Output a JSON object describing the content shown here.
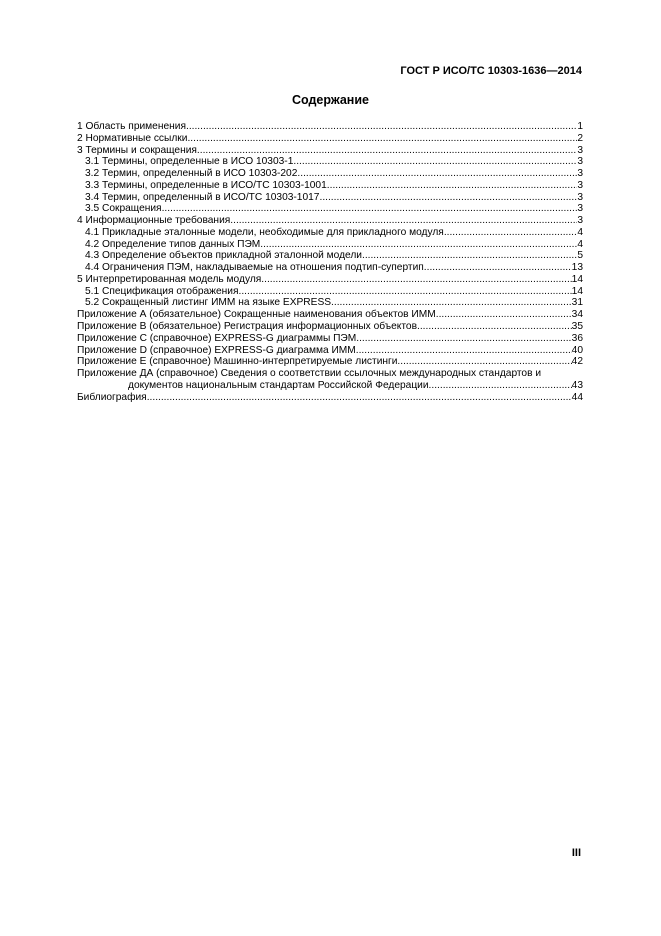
{
  "header": {
    "doc_id": "ГОСТ Р ИСО/ТС 10303-1636—2014"
  },
  "title": "Содержание",
  "toc": [
    {
      "text": "1 Область применения",
      "page": "1",
      "level": 0
    },
    {
      "text": "2 Нормативные ссылки",
      "page": "2",
      "level": 0
    },
    {
      "text": "3 Термины и сокращения",
      "page": "3",
      "level": 0
    },
    {
      "text": "3.1 Термины, определенные в ИСО 10303-1",
      "page": "3",
      "level": 1
    },
    {
      "text": "3.2 Термин, определенный в ИСО 10303-202",
      "page": "3",
      "level": 1
    },
    {
      "text": "3.3 Термины, определенные в ИСО/ТС 10303-1001",
      "page": "3",
      "level": 1
    },
    {
      "text": "3.4 Термин, определенный в ИСО/ТС 10303-1017",
      "page": "3",
      "level": 1
    },
    {
      "text": "3.5 Сокращения",
      "page": "3",
      "level": 1
    },
    {
      "text": "4 Информационные требования",
      "page": "3",
      "level": 0
    },
    {
      "text": "4.1 Прикладные эталонные модели, необходимые для прикладного модуля",
      "page": "4",
      "level": 1
    },
    {
      "text": "4.2 Определение типов данных ПЭМ",
      "page": "4",
      "level": 1
    },
    {
      "text": "4.3 Определение объектов прикладной эталонной модели",
      "page": "5",
      "level": 1
    },
    {
      "text": "4.4 Ограничения ПЭМ, накладываемые на отношения подтип-супертип",
      "page": "13",
      "level": 1
    },
    {
      "text": "5 Интерпретированная модель модуля",
      "page": "14",
      "level": 0
    },
    {
      "text": "5.1 Спецификация отображения",
      "page": "14",
      "level": 1
    },
    {
      "text": "5.2 Сокращенный листинг ИММ на языке EXPRESS",
      "page": "31",
      "level": 1
    },
    {
      "text": "Приложение А (обязательное) Сокращенные наименования объектов ИММ",
      "page": "34",
      "level": 0
    },
    {
      "text": "Приложение В (обязательное) Регистрация информационных объектов",
      "page": "35",
      "level": 0
    },
    {
      "text": "Приложение С (справочное) EXPRESS-G диаграммы ПЭМ",
      "page": "36",
      "level": 0
    },
    {
      "text": "Приложение D (справочное) EXPRESS-G диаграмма ИММ",
      "page": "40",
      "level": 0
    },
    {
      "text": "Приложение Е (справочное) Машинно-интерпретируемые листинги",
      "page": "42",
      "level": 0
    },
    {
      "text": "Приложение ДА (справочное) Сведения о соответствии ссылочных международных стандартов и",
      "continuation": "документов национальным стандартам Российской Федерации",
      "page": "43",
      "level": 0
    },
    {
      "text": "Библиография",
      "page": "44",
      "level": 0
    }
  ],
  "page_number": "III"
}
